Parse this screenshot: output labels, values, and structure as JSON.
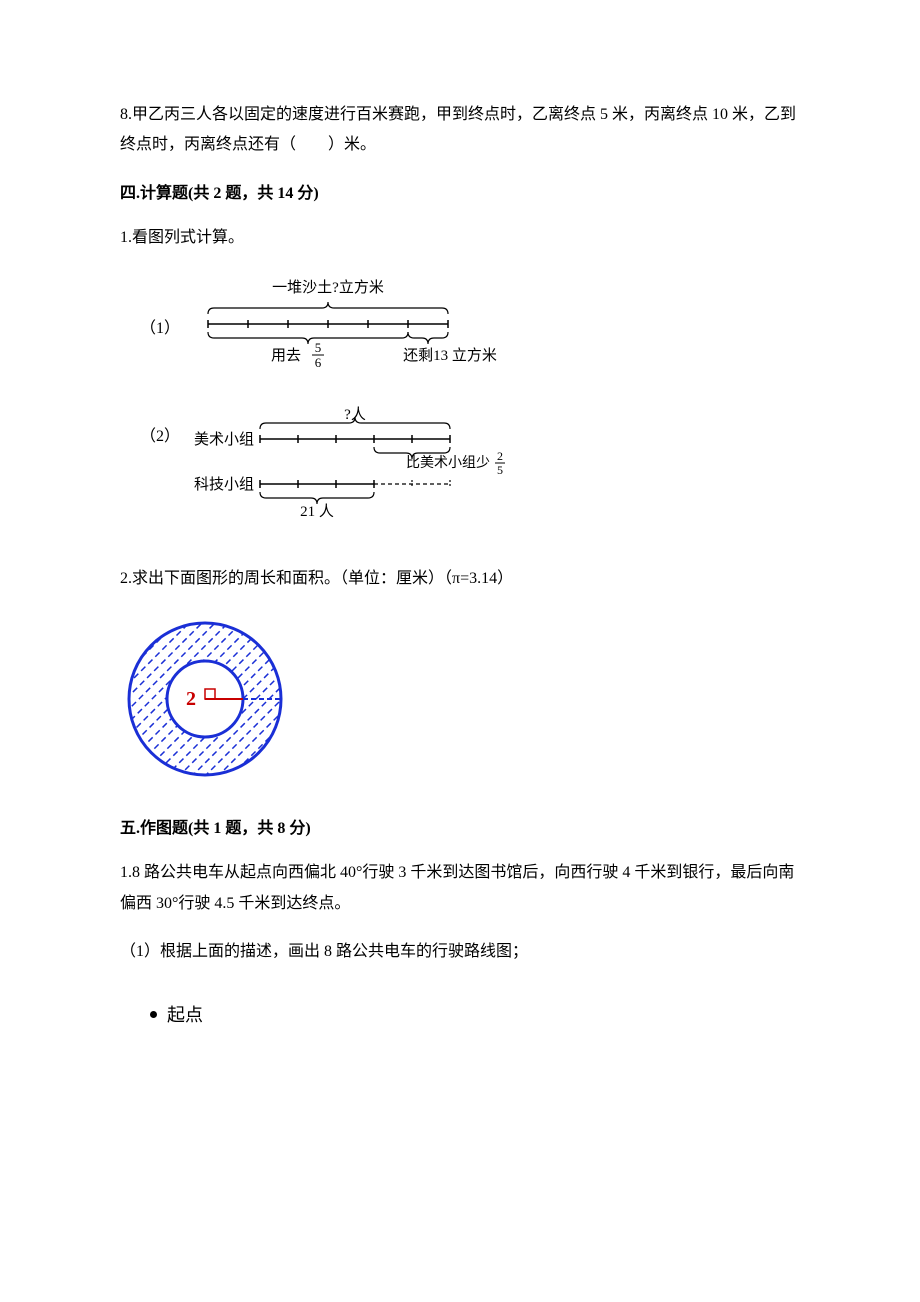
{
  "q8": {
    "text": "8.甲乙丙三人各以固定的速度进行百米赛跑，甲到终点时，乙离终点 5 米，丙离终点 10 米，乙到终点时，丙离终点还有（　　）米。"
  },
  "section4": {
    "heading": "四.计算题(共 2 题，共 14 分)",
    "q1": {
      "prompt": "1.看图列式计算。",
      "part1_label": "（1）",
      "d1": {
        "top_label": "一堆沙土?立方米",
        "left_label": "用去",
        "left_frac_num": "5",
        "left_frac_den": "6",
        "right_label": "还剩13 立方米",
        "total_segments": 6,
        "used_segments": 5,
        "line_color": "#000000"
      },
      "part2_label": "（2）",
      "d2": {
        "top_label": "?人",
        "group_a_label": "美术小组",
        "group_b_label": "科技小组",
        "right_label_prefix": "比美术小组少",
        "right_frac_num": "2",
        "right_frac_den": "5",
        "bottom_label": "21 人",
        "a_segments": 5,
        "b_segments": 3,
        "line_color": "#000000"
      }
    },
    "q2": {
      "prompt": "2.求出下面图形的周长和面积。（单位：厘米）（π=3.14）",
      "ring": {
        "outer_r": 4,
        "inner_r": 2,
        "label": "2",
        "outer_color": "#1a2fd6",
        "hatch_color": "#1a2fd6",
        "label_color": "#c80000",
        "inner_r_line_color": "#c80000",
        "bg_color": "#ffffff"
      }
    }
  },
  "section5": {
    "heading": "五.作图题(共 1 题，共 8 分)",
    "q1": {
      "lines": [
        "1.8 路公共电车从起点向西偏北 40°行驶 3 千米到达图书馆后，向西行驶 4 千米到银行，最后向南偏西 30°行驶 4.5 千米到达终点。",
        "（1）根据上面的描述，画出 8 路公共电车的行驶路线图；"
      ],
      "start_label": "起点"
    }
  }
}
